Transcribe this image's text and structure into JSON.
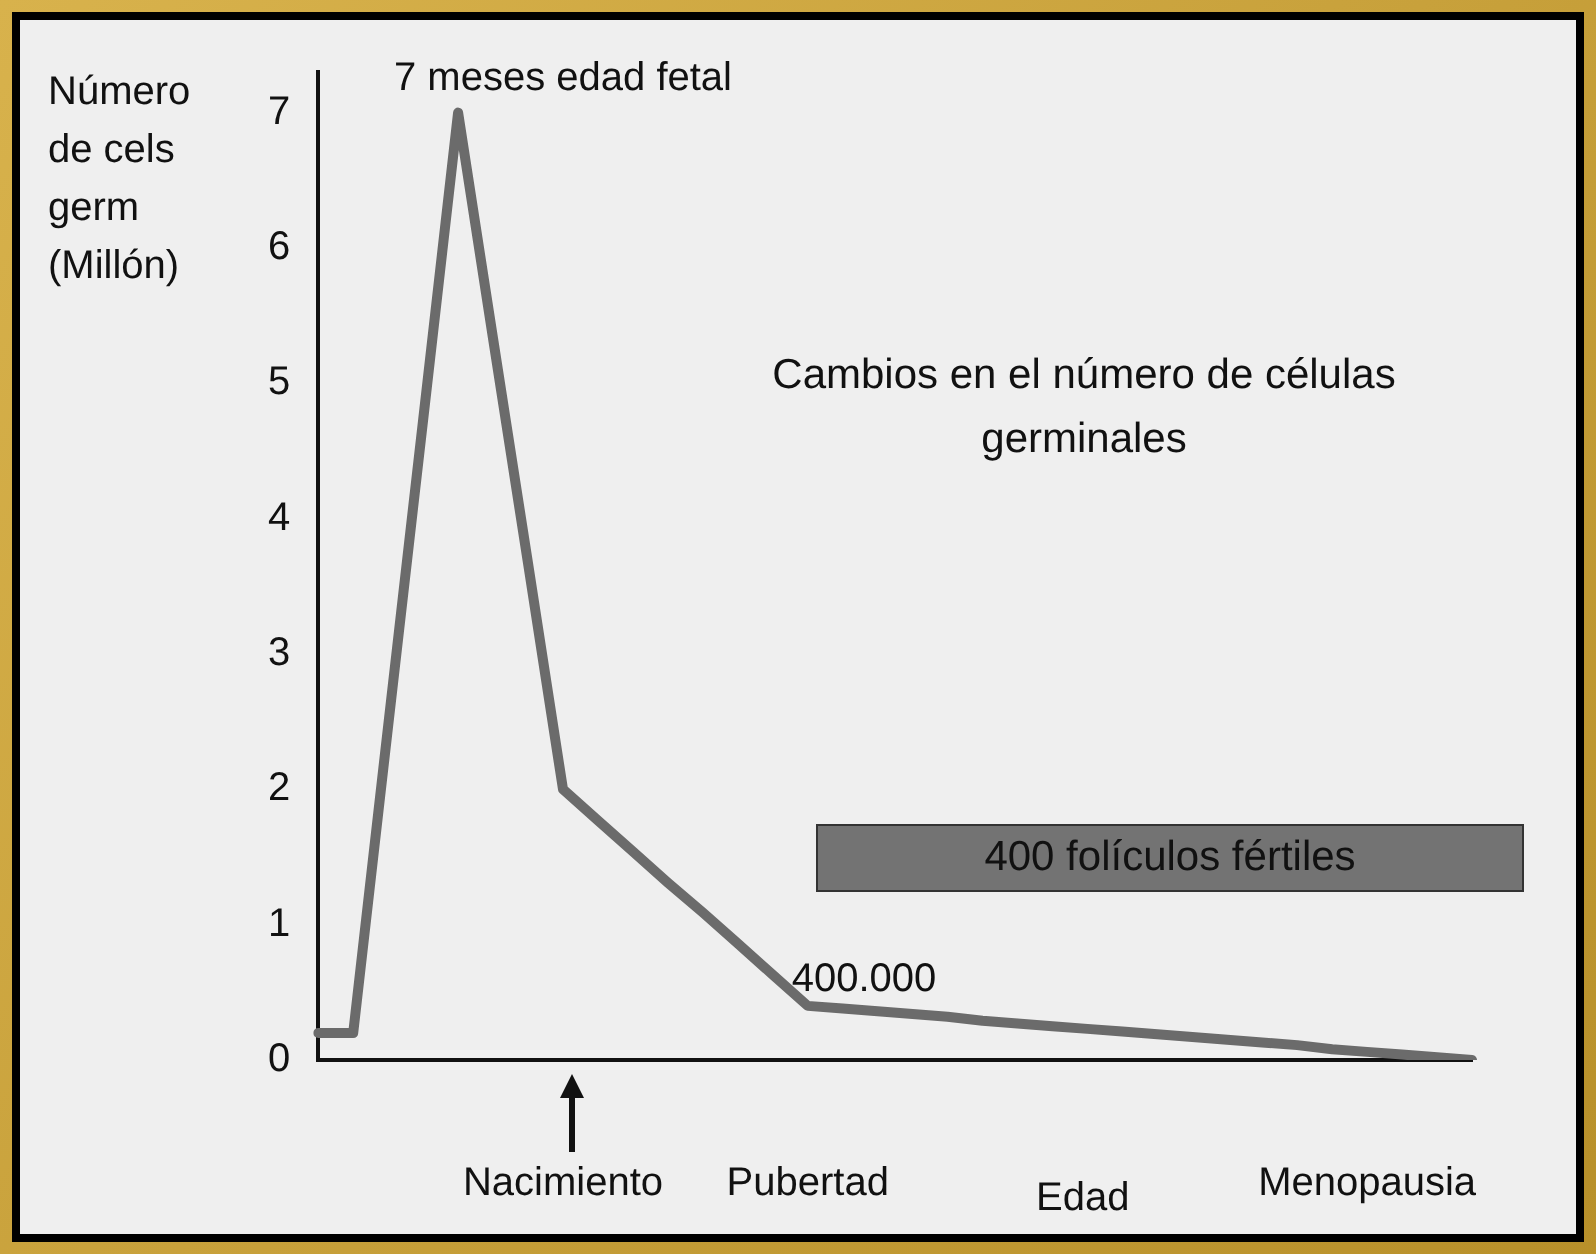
{
  "chart_data": {
    "type": "line",
    "title": "Cambios en el número de células germinales",
    "xlabel": "Edad",
    "ylabel": "Número de cels germ (Millón)",
    "categories": [
      null,
      null,
      null,
      null,
      null,
      null,
      null,
      "Nacimiento",
      null,
      null,
      null,
      null,
      null,
      null,
      "Pubertad",
      null,
      null,
      null,
      null,
      null,
      null,
      null,
      null,
      null,
      null,
      null,
      null,
      null,
      null,
      null,
      "Menopausia",
      null,
      null,
      null
    ],
    "series": [
      {
        "color": "#6b6b6b",
        "values": [
          0.2,
          0.2,
          2.47,
          4.73,
          7,
          5.33,
          3.67,
          2,
          1.77,
          1.54,
          1.31,
          1.09,
          0.86,
          0.63,
          0.4,
          0.38,
          0.36,
          0.34,
          0.32,
          0.29,
          0.27,
          0.25,
          0.23,
          0.21,
          0.19,
          0.17,
          0.15,
          0.13,
          0.11,
          0.08,
          0.06,
          0.04,
          0.02,
          0
        ]
      }
    ],
    "ylim": [
      0,
      7.3
    ],
    "yticks": [
      0,
      1,
      2,
      3,
      4,
      5,
      6,
      7
    ],
    "grid": false,
    "legend": false,
    "marker": "none",
    "line_style": "solid",
    "annotations": [
      "7 meses edad fetal",
      {
        "text": "400.000",
        "x": "Pubertad",
        "y": 0.4
      },
      "400 folículos fértiles"
    ]
  }
}
